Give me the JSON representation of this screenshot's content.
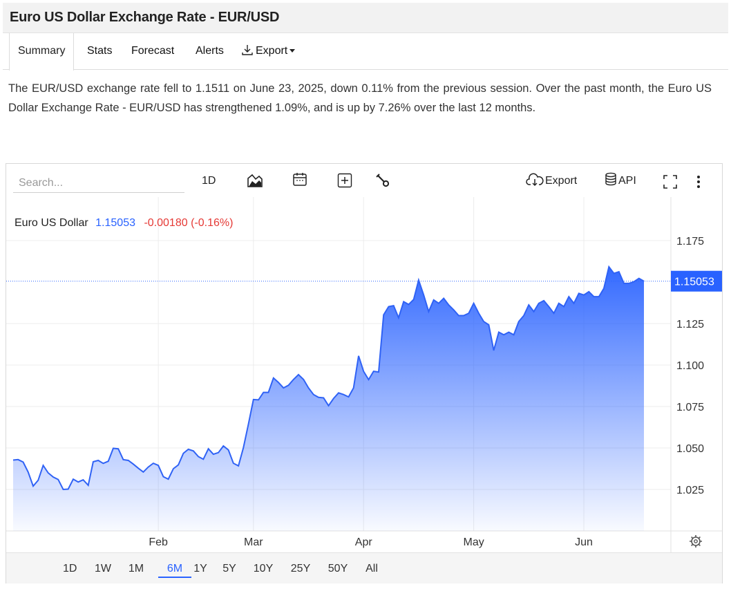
{
  "header": {
    "title": "Euro US Dollar Exchange Rate - EUR/USD"
  },
  "tabs": [
    {
      "label": "Summary"
    },
    {
      "label": "Stats"
    },
    {
      "label": "Forecast"
    },
    {
      "label": "Alerts"
    },
    {
      "label": "Export"
    }
  ],
  "summary": "The EUR/USD exchange rate fell to 1.1511 on June 23, 2025, down 0.11% from the previous session. Over the past month, the Euro US Dollar Exchange Rate - EUR/USD has strengthened 1.09%, and is up by 7.26% over the last 12 months.",
  "toolbar": {
    "search_placeholder": "Search...",
    "interval_label": "1D",
    "export_label": "Export",
    "api_label": "API",
    "icons": [
      "chart-type-icon",
      "calendar-icon",
      "compare-plus-icon",
      "wrench-icon",
      "cloud-download-icon",
      "database-icon",
      "fullscreen-icon",
      "more-vertical-icon"
    ]
  },
  "colors": {
    "accent": "#2962ff",
    "negative": "#e53935",
    "line": "#3b6cf6"
  },
  "chart_data": {
    "type": "area",
    "legend": {
      "name": "Euro US Dollar",
      "last": "1.15053",
      "change": "-0.00180 (-0.16%)"
    },
    "last_price_label": "1.15053",
    "last_price": 1.15053,
    "xlabels": [
      "Feb",
      "Mar",
      "Apr",
      "May",
      "Jun"
    ],
    "yticks": [
      1.025,
      1.05,
      1.075,
      1.1,
      1.125,
      1.175
    ],
    "ytick_labels": [
      "1.025",
      "1.050",
      "1.075",
      "1.100",
      "1.125",
      "1.175"
    ],
    "ylim": [
      1.0,
      1.2
    ],
    "grid": true,
    "values": [
      1.0427,
      1.043,
      1.0415,
      1.0355,
      1.027,
      1.0305,
      1.0395,
      1.035,
      1.0325,
      1.031,
      1.025,
      1.0252,
      1.0312,
      1.0295,
      1.0308,
      1.0275,
      1.0417,
      1.0425,
      1.0407,
      1.042,
      1.0498,
      1.0495,
      1.043,
      1.0425,
      1.0403,
      1.0378,
      1.0355,
      1.0385,
      1.0408,
      1.0395,
      1.0327,
      1.0312,
      1.0375,
      1.0398,
      1.0468,
      1.0492,
      1.0482,
      1.0448,
      1.0432,
      1.0495,
      1.0462,
      1.0472,
      1.0512,
      1.0488,
      1.0408,
      1.0392,
      1.0502,
      1.0645,
      1.0792,
      1.079,
      1.0835,
      1.0835,
      1.0922,
      1.0895,
      1.0862,
      1.0878,
      1.0913,
      1.0942,
      1.0913,
      1.0862,
      1.0822,
      1.0805,
      1.0802,
      1.0755,
      1.0798,
      1.0832,
      1.0822,
      1.0808,
      1.0862,
      1.1055,
      1.0962,
      1.0912,
      1.0962,
      1.0958,
      1.1302,
      1.1352,
      1.1358,
      1.1285,
      1.1382,
      1.1365,
      1.1395,
      1.1512,
      1.1422,
      1.1322,
      1.1392,
      1.1372,
      1.1402,
      1.1362,
      1.1332,
      1.1298,
      1.1298,
      1.1312,
      1.1372,
      1.1312,
      1.1262,
      1.1242,
      1.1088,
      1.1198,
      1.1182,
      1.1198,
      1.1182,
      1.1262,
      1.1298,
      1.1362,
      1.1322,
      1.1372,
      1.1388,
      1.1352,
      1.1312,
      1.1372,
      1.1352,
      1.1412,
      1.1372,
      1.1432,
      1.1422,
      1.1442,
      1.1412,
      1.1412,
      1.1462,
      1.1592,
      1.1552,
      1.1562,
      1.1492,
      1.1492,
      1.1502,
      1.1522,
      1.15053
    ],
    "timeframe": [
      "1D",
      "1W",
      "1M",
      "6M",
      "1Y",
      "5Y",
      "10Y",
      "25Y",
      "50Y",
      "All"
    ],
    "active_timeframe": "6M"
  }
}
